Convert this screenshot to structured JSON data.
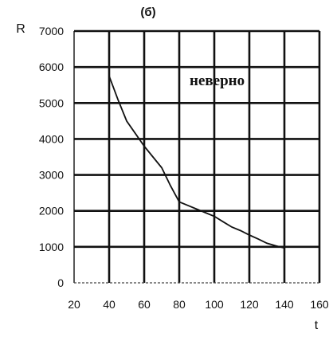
{
  "chart_data": {
    "type": "line",
    "title": "(б)",
    "ylabel": "R",
    "xlabel": "t",
    "annotation": "неверно",
    "xlim": [
      20,
      160
    ],
    "ylim": [
      0,
      7000
    ],
    "x_ticks": [
      20,
      40,
      60,
      80,
      100,
      120,
      140,
      160
    ],
    "y_ticks": [
      0,
      1000,
      2000,
      3000,
      4000,
      5000,
      6000,
      7000
    ],
    "grid": true,
    "series": [
      {
        "x": [
          40,
          45,
          50,
          55,
          60,
          65,
          70,
          75,
          80,
          85,
          90,
          95,
          100,
          105,
          110,
          115,
          120,
          125,
          130,
          135,
          140
        ],
        "y": [
          5750,
          5100,
          4500,
          4150,
          3800,
          3500,
          3200,
          2700,
          2250,
          2150,
          2050,
          1950,
          1850,
          1700,
          1550,
          1450,
          1330,
          1220,
          1100,
          1030,
          970
        ]
      }
    ]
  }
}
